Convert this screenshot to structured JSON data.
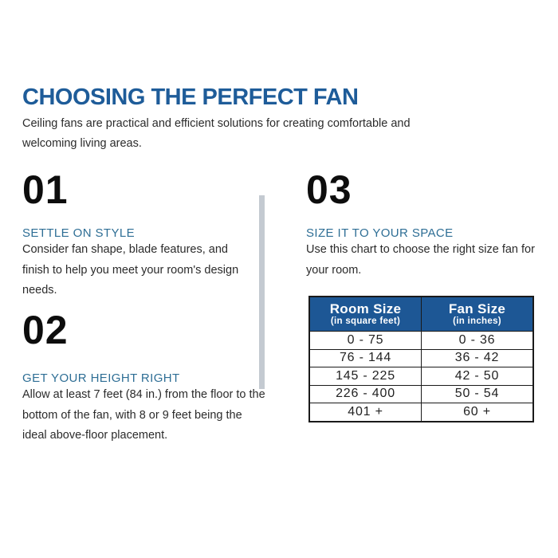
{
  "page": {
    "title": "CHOOSING THE PERFECT FAN",
    "subtitle": "Ceiling fans are practical and efficient solutions for creating comfortable and welcoming living areas."
  },
  "steps": [
    {
      "number": "01",
      "heading": "SETTLE ON STYLE",
      "body": "Consider fan shape, blade features, and finish to help you meet your room's design needs."
    },
    {
      "number": "02",
      "heading": "GET YOUR HEIGHT RIGHT",
      "body": "Allow at least 7 feet (84 in.) from the floor to the bottom of the fan, with 8 or 9 feet being the ideal above-floor placement."
    },
    {
      "number": "03",
      "heading": "SIZE IT TO YOUR SPACE",
      "body": "Use this chart to choose the right size fan for your room."
    }
  ],
  "chart_data": {
    "type": "table",
    "columns": [
      {
        "title": "Room Size",
        "subtitle": "(in square feet)"
      },
      {
        "title": "Fan Size",
        "subtitle": "(in inches)"
      }
    ],
    "rows": [
      [
        "0 - 75",
        "0 - 36"
      ],
      [
        "76 - 144",
        "36 - 42"
      ],
      [
        "145 - 225",
        "42 - 50"
      ],
      [
        "226 - 400",
        "50 - 54"
      ],
      [
        "401 +",
        "60 +"
      ]
    ]
  },
  "colors": {
    "brand_blue": "#1E5C99",
    "heading_blue": "#2E6E95",
    "table_header_bg": "#1D5795",
    "table_border": "#1A1A1A",
    "divider_gray": "#C4CAD1",
    "body_text": "#2B2B2B",
    "number_black": "#0D0D0D"
  }
}
